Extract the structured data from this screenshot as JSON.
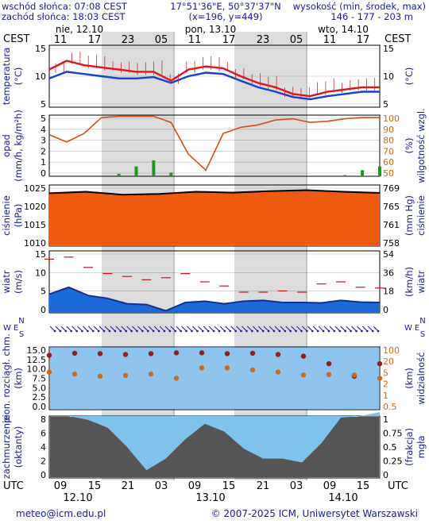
{
  "header": {
    "sunrise": "wschód słońca: 07:08 CEST",
    "sunset": "zachód słońca: 18:03 CEST",
    "coords": "17°51'36\"E, 50°37'37\"N",
    "grid": "(x=196, y=449)",
    "elev_label": "wysokość (min, środek, max)",
    "elev_values": "146 - 177 - 203 m"
  },
  "time_axis": {
    "top_tz": "CEST",
    "bottom_tz": "UTC",
    "day_labels_top": [
      "nie, 12.10",
      "pon, 13.10",
      "wto, 14.10"
    ],
    "hours_top": [
      "11",
      "17",
      "23",
      "05",
      "11",
      "17",
      "23",
      "05",
      "11",
      "17"
    ],
    "hours_bottom": [
      "09",
      "15",
      "21",
      "03",
      "09",
      "15",
      "21",
      "03",
      "09",
      "15"
    ],
    "dates_bottom": [
      "12.10",
      "13.10",
      "14.10"
    ]
  },
  "footer": {
    "email": "meteo@icm.edu.pl",
    "copyright": "© 2007-2025 ICM, Uniwersytet Warszawski"
  },
  "panels": {
    "temp": {
      "left_label": "temperatura",
      "left_unit": "(°C)",
      "right_unit": "(°C)",
      "ticks_left": [
        "15",
        "10",
        "5"
      ],
      "ticks_right": [
        "15",
        "10",
        "5"
      ]
    },
    "precip": {
      "left_label": "opad",
      "left_unit": "(mm/h, kg/m²h)",
      "right_label": "wilgotność wzgl.",
      "right_unit": "(%)",
      "ticks_left": [
        "5",
        "4",
        "3",
        "2",
        "1",
        "0"
      ],
      "ticks_right": [
        "100",
        "90",
        "80",
        "70",
        "60",
        "50"
      ]
    },
    "pressure": {
      "left_label": "ciśnienie",
      "left_unit": "(hPa)",
      "right_label": "ciśnienie",
      "right_unit": "(mm Hg)",
      "ticks_left": [
        "1025",
        "1020",
        "1015",
        "1010"
      ],
      "ticks_right": [
        "769",
        "765",
        "761",
        "758"
      ]
    },
    "wind": {
      "left_label": "wiatr",
      "left_unit": "(m/s)",
      "right_label": "wiatr",
      "right_unit": "(km/h)",
      "ticks_left": [
        "15",
        "10",
        "5",
        "0"
      ],
      "ticks_right": [
        "54",
        "36",
        "18",
        "0"
      ]
    },
    "winddir": {
      "compass": "N W E S"
    },
    "cloudbase": {
      "left_label": "pion. rozciągł. chm.",
      "left_unit": "(km)",
      "right_label": "widzialność",
      "right_unit": "(km)",
      "ticks_left": [
        "15.0",
        "12.5",
        "10.0",
        "7.5",
        "5.0",
        "2.5",
        "0.0"
      ],
      "ticks_right": [
        "100",
        "20",
        "5",
        "2",
        "1",
        "0.5"
      ]
    },
    "clouds": {
      "left_label": "zachmurzenie",
      "left_unit": "(oktanty)",
      "right_label": "mgła",
      "right_unit": "(frakcja)",
      "ticks_left": [
        "8",
        "6",
        "4",
        "2",
        "0"
      ],
      "ticks_right": [
        "1",
        "0.75",
        "0.5",
        "0.25",
        "0"
      ]
    }
  },
  "colors": {
    "temp_max": "#e8101c",
    "temp_mean": "#1040e0",
    "humidity": "#d0501a",
    "precip": "#1a9a1a",
    "pressure_fill": "#ee5a10",
    "wind_mean": "#10308c",
    "gust": "#c01818"
  },
  "chart_data": [
    {
      "type": "line",
      "title": "temperatura",
      "ylabel": "(°C)",
      "ylim": [
        3,
        17
      ],
      "x": [
        "12.10 11",
        "12.10 14",
        "12.10 17",
        "12.10 20",
        "12.10 23",
        "13.10 02",
        "13.10 05",
        "13.10 08",
        "13.10 11",
        "13.10 14",
        "13.10 17",
        "13.10 20",
        "13.10 23",
        "14.10 02",
        "14.10 05",
        "14.10 08",
        "14.10 11",
        "14.10 14",
        "14.10 17",
        "14.10 20"
      ],
      "series": [
        {
          "values": [
            11.5,
            13.5,
            12.5,
            12,
            11.5,
            11,
            11,
            9,
            11.5,
            12.2,
            11.8,
            10,
            8.5,
            7.5,
            6,
            5.5,
            6.5,
            7,
            7.5,
            7.5
          ]
        },
        {
          "values": [
            9.5,
            11,
            10.5,
            10,
            9.5,
            9.5,
            9.8,
            8.5,
            10,
            10.8,
            10.5,
            9,
            7.5,
            6.5,
            5.3,
            4.8,
            5.5,
            6,
            6.5,
            6.5
          ]
        }
      ]
    },
    {
      "type": "area",
      "title": "opad",
      "ylabel": "(mm/h, kg/m²h)",
      "ylim": [
        0,
        5
      ],
      "series": [
        {
          "values": [
            0,
            0,
            0,
            0,
            0.2,
            0.8,
            1.3,
            0.3,
            0,
            0,
            0,
            0,
            0,
            0,
            0,
            0,
            0,
            0.1,
            0.5,
            0.8
          ]
        },
        {
          "values": [
            84,
            78,
            85,
            98,
            99,
            99,
            99,
            94,
            68,
            55,
            85,
            90,
            92,
            96,
            97,
            94,
            95,
            97,
            98,
            98
          ]
        }
      ]
    },
    {
      "type": "line",
      "title": "ciśnienie",
      "ylabel": "(hPa)",
      "ylim": [
        1008,
        1028
      ],
      "x": [
        "12.10 11",
        "12.10 17",
        "12.10 23",
        "13.10 05",
        "13.10 11",
        "13.10 17",
        "13.10 23",
        "14.10 05",
        "14.10 11",
        "14.10 17"
      ],
      "series": [
        {
          "values": [
            1025.3,
            1025.8,
            1024.8,
            1025.1,
            1025.8,
            1025.5,
            1026,
            1026.3,
            1025.8,
            1025.4
          ]
        }
      ]
    },
    {
      "type": "area",
      "title": "wiatr",
      "ylabel": "(m/s)",
      "ylim": [
        0,
        15
      ],
      "series": [
        {
          "values": [
            4.5,
            6.2,
            4.2,
            3.5,
            2.2,
            2,
            0.5,
            2.5,
            2.8,
            2.2,
            2.8,
            3,
            2.5,
            2.5,
            2.4,
            3,
            2.6,
            2.5
          ]
        },
        {
          "values": [
            13,
            13.5,
            11,
            9.5,
            8.8,
            8,
            8.5,
            9.5,
            7.5,
            6.5,
            5,
            5,
            5.3,
            5,
            7,
            7.5,
            6.2,
            6
          ]
        }
      ]
    },
    {
      "type": "line",
      "title": "pion. rozciągł. chm.",
      "ylabel": "(km)",
      "ylim": [
        0,
        15
      ],
      "series": [
        {
          "values": [
            13,
            13.5,
            13.4,
            13.2,
            13.4,
            13.6,
            13.6,
            13.4,
            13.5,
            13.2,
            12.8,
            11,
            8,
            11
          ]
        },
        {
          "values": [
            9,
            8.5,
            8,
            8.2,
            8.5,
            7.5,
            10,
            10,
            9.5,
            9,
            8.3,
            8.4,
            8.3,
            7.5
          ]
        }
      ]
    },
    {
      "type": "area",
      "title": "zachmurzenie",
      "ylabel": "(oktanty)",
      "ylim": [
        0,
        8
      ],
      "series": [
        {
          "values": [
            8,
            8,
            7.5,
            6.5,
            4,
            1,
            2.5,
            5,
            7,
            6,
            3.8,
            2.5,
            2.5,
            2,
            4.5,
            7.8,
            8,
            8.5
          ]
        }
      ]
    }
  ]
}
